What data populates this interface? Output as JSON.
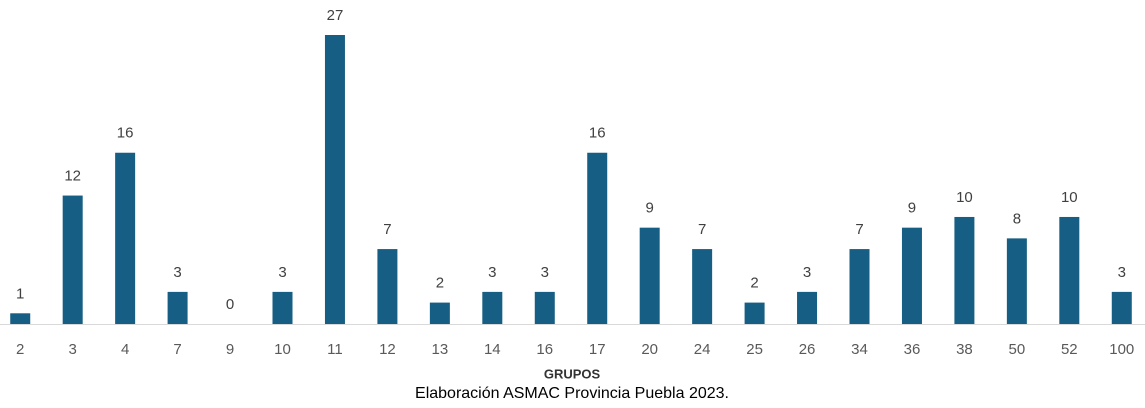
{
  "chart_data": {
    "type": "bar",
    "x_label": "GRUPOS",
    "source": "Elaboración ASMAC Provincia Puebla 2023.",
    "categories": [
      "2",
      "3",
      "4",
      "7",
      "9",
      "10",
      "11",
      "12",
      "13",
      "14",
      "16",
      "17",
      "20",
      "24",
      "25",
      "26",
      "34",
      "36",
      "38",
      "50",
      "52",
      "100"
    ],
    "values": [
      1,
      12,
      16,
      3,
      0,
      3,
      27,
      7,
      2,
      3,
      3,
      16,
      9,
      7,
      2,
      3,
      7,
      9,
      10,
      8,
      10,
      3
    ],
    "color": "#165e83"
  }
}
